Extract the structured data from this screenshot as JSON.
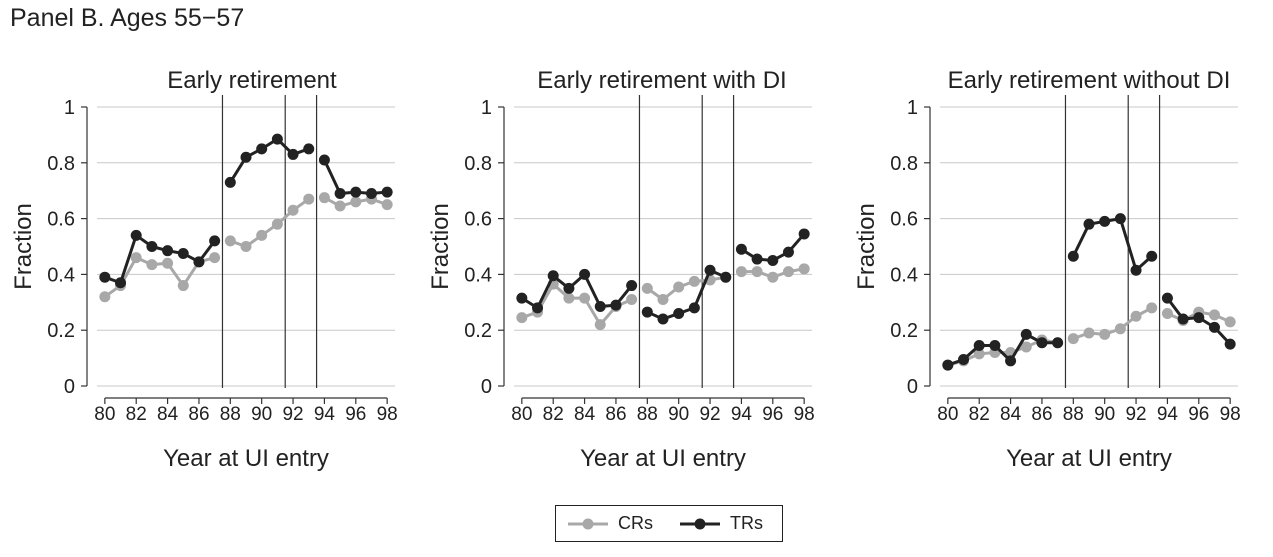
{
  "panel_title": "Panel B. Ages 55−57",
  "colors": {
    "crs": "#a8a8a8",
    "trs": "#222222",
    "grid": "#c8c8c8",
    "axis": "#333333"
  },
  "legend": {
    "crs": "CRs",
    "trs": "TRs"
  },
  "chart_data": [
    {
      "type": "line",
      "title": "Early retirement",
      "xlabel": "Year at UI entry",
      "ylabel": "Fraction",
      "xlim": [
        79.5,
        98.5
      ],
      "ylim": [
        0,
        1
      ],
      "xticks": [
        80,
        82,
        84,
        86,
        88,
        90,
        92,
        94,
        96,
        98
      ],
      "yticks": [
        0,
        0.2,
        0.4,
        0.6,
        0.8,
        1
      ],
      "ytick_labels": [
        "0",
        "0.2",
        "0.4",
        "0.6",
        "0.8",
        "1"
      ],
      "grid": true,
      "vlines": [
        87.5,
        91.5,
        93.5
      ],
      "series": [
        {
          "name": "CRs",
          "segments": [
            {
              "x": [
                80,
                81,
                82,
                83,
                84,
                85,
                86,
                87
              ],
              "y": [
                0.32,
                0.36,
                0.46,
                0.435,
                0.44,
                0.36,
                0.445,
                0.46
              ]
            },
            {
              "x": [
                88,
                89,
                90,
                91,
                92,
                93
              ],
              "y": [
                0.52,
                0.5,
                0.54,
                0.58,
                0.63,
                0.67
              ]
            },
            {
              "x": [
                94,
                95,
                96,
                97,
                98
              ],
              "y": [
                0.675,
                0.645,
                0.66,
                0.67,
                0.65
              ]
            }
          ]
        },
        {
          "name": "TRs",
          "segments": [
            {
              "x": [
                80,
                81,
                82,
                83,
                84,
                85,
                86,
                87
              ],
              "y": [
                0.39,
                0.37,
                0.54,
                0.5,
                0.485,
                0.475,
                0.445,
                0.52
              ]
            },
            {
              "x": [
                88,
                89,
                90,
                91,
                92,
                93
              ],
              "y": [
                0.73,
                0.82,
                0.85,
                0.885,
                0.83,
                0.85
              ]
            },
            {
              "x": [
                94,
                95,
                96,
                97,
                98
              ],
              "y": [
                0.81,
                0.69,
                0.695,
                0.69,
                0.695
              ]
            }
          ]
        }
      ]
    },
    {
      "type": "line",
      "title": "Early  retirement with DI",
      "xlabel": "Year at UI entry",
      "ylabel": "Fraction",
      "xlim": [
        79.5,
        98.5
      ],
      "ylim": [
        0,
        1
      ],
      "xticks": [
        80,
        82,
        84,
        86,
        88,
        90,
        92,
        94,
        96,
        98
      ],
      "yticks": [
        0,
        0.2,
        0.4,
        0.6,
        0.8,
        1
      ],
      "ytick_labels": [
        "0",
        "0.2",
        "0.4",
        "0.6",
        "0.8",
        "1"
      ],
      "grid": true,
      "vlines": [
        87.5,
        91.5,
        93.5
      ],
      "series": [
        {
          "name": "CRs",
          "segments": [
            {
              "x": [
                80,
                81,
                82,
                83,
                84,
                85,
                86,
                87
              ],
              "y": [
                0.245,
                0.265,
                0.365,
                0.315,
                0.315,
                0.22,
                0.285,
                0.31
              ]
            },
            {
              "x": [
                88,
                89,
                90,
                91,
                92,
                93
              ],
              "y": [
                0.35,
                0.31,
                0.355,
                0.375,
                0.38,
                0.39
              ]
            },
            {
              "x": [
                94,
                95,
                96,
                97,
                98
              ],
              "y": [
                0.41,
                0.41,
                0.39,
                0.41,
                0.42
              ]
            }
          ]
        },
        {
          "name": "TRs",
          "segments": [
            {
              "x": [
                80,
                81,
                82,
                83,
                84,
                85,
                86,
                87
              ],
              "y": [
                0.315,
                0.28,
                0.395,
                0.35,
                0.4,
                0.285,
                0.29,
                0.36
              ]
            },
            {
              "x": [
                88,
                89,
                90,
                91,
                92,
                93
              ],
              "y": [
                0.265,
                0.24,
                0.26,
                0.28,
                0.415,
                0.39
              ]
            },
            {
              "x": [
                94,
                95,
                96,
                97,
                98
              ],
              "y": [
                0.49,
                0.455,
                0.45,
                0.48,
                0.545
              ]
            }
          ]
        }
      ]
    },
    {
      "type": "line",
      "title": "Early retirement without DI",
      "xlabel": "Year at UI entry",
      "ylabel": "Fraction",
      "xlim": [
        79.5,
        98.5
      ],
      "ylim": [
        0,
        1
      ],
      "xticks": [
        80,
        82,
        84,
        86,
        88,
        90,
        92,
        94,
        96,
        98
      ],
      "yticks": [
        0,
        0.2,
        0.4,
        0.6,
        0.8,
        1
      ],
      "ytick_labels": [
        "0",
        "0.2",
        "0.4",
        "0.6",
        "0.8",
        "1"
      ],
      "grid": true,
      "vlines": [
        87.5,
        91.5,
        93.5
      ],
      "series": [
        {
          "name": "CRs",
          "segments": [
            {
              "x": [
                80,
                81,
                82,
                83,
                84,
                85,
                86,
                87
              ],
              "y": [
                0.075,
                0.09,
                0.115,
                0.12,
                0.12,
                0.14,
                0.165,
                0.155
              ]
            },
            {
              "x": [
                88,
                89,
                90,
                91,
                92,
                93
              ],
              "y": [
                0.17,
                0.19,
                0.185,
                0.205,
                0.25,
                0.28
              ]
            },
            {
              "x": [
                94,
                95,
                96,
                97,
                98
              ],
              "y": [
                0.26,
                0.235,
                0.265,
                0.255,
                0.23
              ]
            }
          ]
        },
        {
          "name": "TRs",
          "segments": [
            {
              "x": [
                80,
                81,
                82,
                83,
                84,
                85,
                86,
                87
              ],
              "y": [
                0.075,
                0.095,
                0.145,
                0.145,
                0.09,
                0.185,
                0.155,
                0.155
              ]
            },
            {
              "x": [
                88,
                89,
                90,
                91,
                92,
                93
              ],
              "y": [
                0.465,
                0.58,
                0.59,
                0.6,
                0.415,
                0.465
              ]
            },
            {
              "x": [
                94,
                95,
                96,
                97,
                98
              ],
              "y": [
                0.315,
                0.24,
                0.245,
                0.21,
                0.15
              ]
            }
          ]
        }
      ]
    }
  ]
}
